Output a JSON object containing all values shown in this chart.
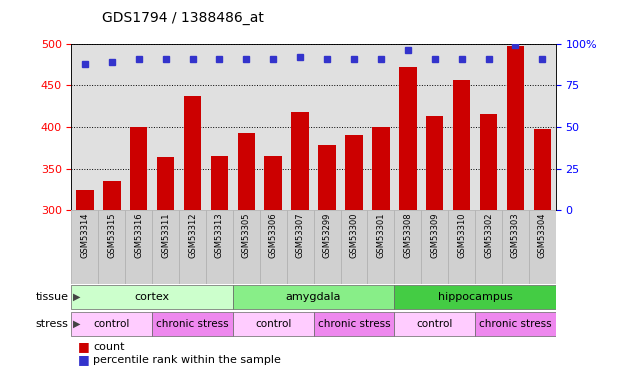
{
  "title": "GDS1794 / 1388486_at",
  "samples": [
    "GSM53314",
    "GSM53315",
    "GSM53316",
    "GSM53311",
    "GSM53312",
    "GSM53313",
    "GSM53305",
    "GSM53306",
    "GSM53307",
    "GSM53299",
    "GSM53300",
    "GSM53301",
    "GSM53308",
    "GSM53309",
    "GSM53310",
    "GSM53302",
    "GSM53303",
    "GSM53304"
  ],
  "counts": [
    325,
    335,
    400,
    364,
    437,
    365,
    393,
    365,
    418,
    378,
    390,
    400,
    472,
    413,
    456,
    415,
    497,
    398
  ],
  "percentiles": [
    88,
    89,
    91,
    91,
    91,
    91,
    91,
    91,
    92,
    91,
    91,
    91,
    96,
    91,
    91,
    91,
    99,
    91
  ],
  "bar_color": "#cc0000",
  "dot_color": "#3333cc",
  "ylim_left": [
    300,
    500
  ],
  "ylim_right": [
    0,
    100
  ],
  "yticks_left": [
    300,
    350,
    400,
    450,
    500
  ],
  "yticks_right": [
    0,
    25,
    50,
    75,
    100
  ],
  "tissue_groups": [
    {
      "label": "cortex",
      "start": 0,
      "end": 6,
      "color": "#ccffcc"
    },
    {
      "label": "amygdala",
      "start": 6,
      "end": 12,
      "color": "#88ee88"
    },
    {
      "label": "hippocampus",
      "start": 12,
      "end": 18,
      "color": "#44cc44"
    }
  ],
  "stress_groups": [
    {
      "label": "control",
      "start": 0,
      "end": 3,
      "color": "#ffccff"
    },
    {
      "label": "chronic stress",
      "start": 3,
      "end": 6,
      "color": "#ee88ee"
    },
    {
      "label": "control",
      "start": 6,
      "end": 9,
      "color": "#ffccff"
    },
    {
      "label": "chronic stress",
      "start": 9,
      "end": 12,
      "color": "#ee88ee"
    },
    {
      "label": "control",
      "start": 12,
      "end": 15,
      "color": "#ffccff"
    },
    {
      "label": "chronic stress",
      "start": 15,
      "end": 18,
      "color": "#ee88ee"
    }
  ],
  "legend_count_label": "count",
  "legend_percentile_label": "percentile rank within the sample",
  "background_color": "#ffffff",
  "plot_bg_color": "#e0e0e0",
  "label_bg_color": "#d0d0d0"
}
